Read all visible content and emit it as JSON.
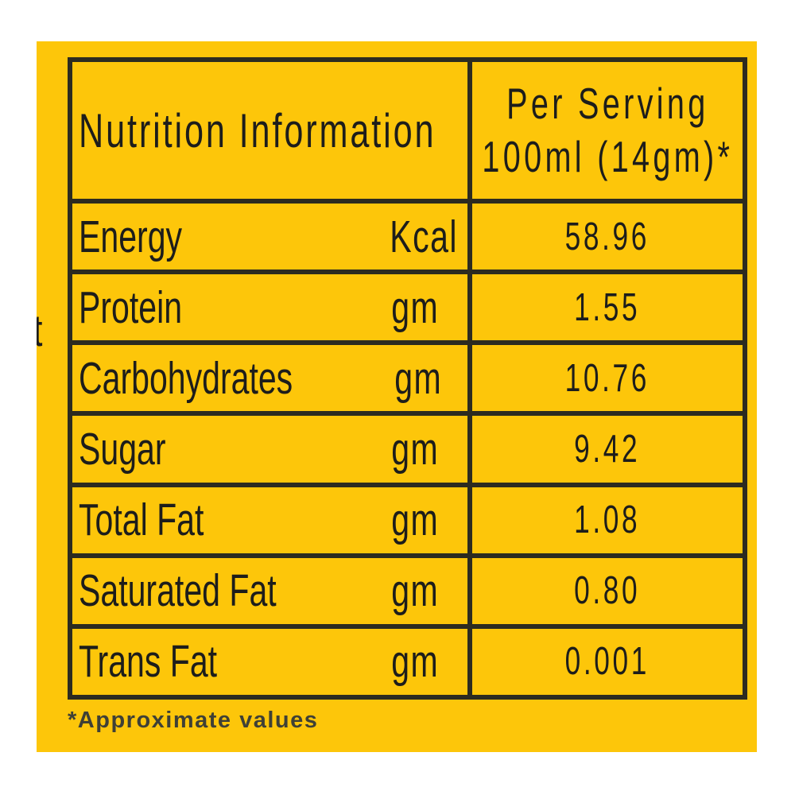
{
  "label": {
    "colors": {
      "panel_bg": "#fdc60a",
      "border": "#2c2b20",
      "text": "#1d1d1b",
      "footnote": "#3f4036"
    },
    "cutoff_fragment": "t",
    "table": {
      "header": {
        "title": "Nutrition Information",
        "per_serving_line1": "Per Serving",
        "per_serving_line2": "100ml (14gm)*"
      },
      "rows": [
        {
          "label": "Energy",
          "unit": "Kcal",
          "value": "58.96"
        },
        {
          "label": "Protein",
          "unit": "gm",
          "value": "1.55"
        },
        {
          "label": "Carbohydrates",
          "unit": "gm",
          "value": "10.76"
        },
        {
          "label": "Sugar",
          "unit": "gm",
          "value": "9.42"
        },
        {
          "label": "Total Fat",
          "unit": "gm",
          "value": "1.08"
        },
        {
          "label": "Saturated Fat",
          "unit": "gm",
          "value": "0.80"
        },
        {
          "label": "Trans Fat",
          "unit": "gm",
          "value": "0.001"
        }
      ]
    },
    "footnote": "*Approximate values"
  }
}
